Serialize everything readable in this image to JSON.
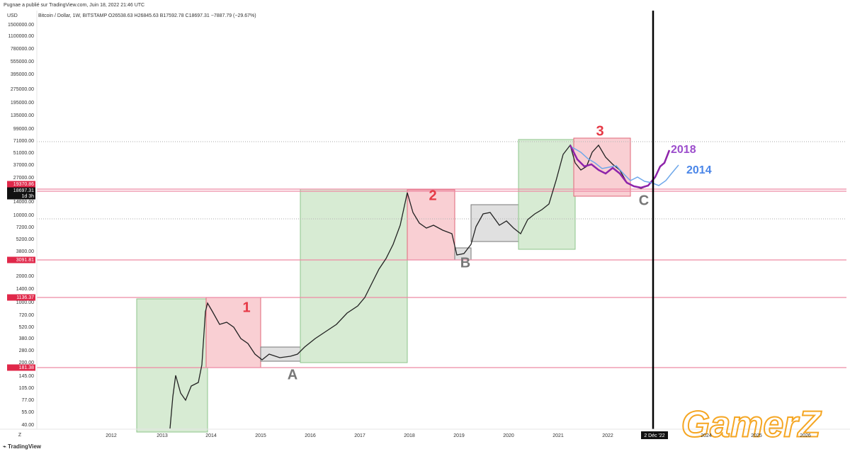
{
  "header": {
    "publisher": "Pugnae a publié sur TradingView.com, Juin 18, 2022 21:46 UTC",
    "symbol_line": "Bitcoin / Dollar, 1W, BITSTAMP  O26538.63  H26845.63  B17592.78  C18697.31  −7887.79 (−29.67%)"
  },
  "y_axis": {
    "currency": "USD",
    "labels": [
      "1500000.00",
      "1100000.00",
      "780000.00",
      "555000.00",
      "395000.00",
      "275000.00",
      "195000.00",
      "135000.00",
      "99000.00",
      "71000.00",
      "51000.00",
      "37000.00",
      "27000.00",
      "14000.00",
      "10000.00",
      "7200.00",
      "5200.00",
      "3800.00",
      "2000.00",
      "1400.00",
      "1000.00",
      "720.00",
      "520.00",
      "380.00",
      "280.00",
      "200.00",
      "145.00",
      "105.00",
      "77.00",
      "55.00",
      "40.00"
    ],
    "badges": [
      "19370.86",
      "18697.31",
      "1d 3h",
      "3091.81",
      "1136.37",
      "181.38"
    ]
  },
  "x_axis": {
    "labels": [
      "2012",
      "2013",
      "2014",
      "2015",
      "2016",
      "2017",
      "2018",
      "2019",
      "2020",
      "2021",
      "2022",
      "2024",
      "2025",
      "2026"
    ],
    "cursor": "2 Déc '22",
    "scale_button": "Z"
  },
  "annotations": {
    "box_1": "1",
    "box_2": "2",
    "box_3": "3",
    "low_a": "A",
    "low_b": "B",
    "low_c": "C",
    "fractal_2018": "2018",
    "fractal_2014": "2014"
  },
  "watermark": "GamerZ",
  "footer": {
    "brand": "TradingView"
  }
}
